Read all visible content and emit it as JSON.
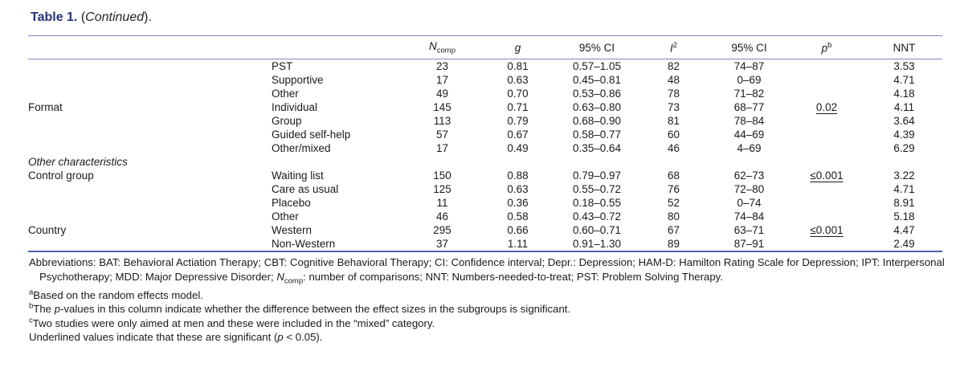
{
  "colors": {
    "rule": "#7e88c0",
    "rule-bottom": "#4f5fac",
    "title": "#24357c",
    "text": "#1a1a1a",
    "bg": "#ffffff"
  },
  "title": {
    "bold": "Table 1.",
    "paren_open": " (",
    "word": "Continued",
    "paren_close": ")."
  },
  "table": {
    "header": {
      "ncomp_main": "N",
      "ncomp_sub": "comp",
      "g": "g",
      "ci1": "95% CI",
      "i2_main": "I",
      "i2_sup": "2",
      "ci2": "95% CI",
      "p_main": "p",
      "p_sup": "b",
      "nnt": "NNT"
    },
    "rows": [
      {
        "category": "",
        "subgroup": "PST",
        "ncomp": "23",
        "g": "0.81",
        "ci1": "0.57–1.05",
        "i2": "82",
        "ci2": "74–87",
        "p": "",
        "nnt": "3.53"
      },
      {
        "category": "",
        "subgroup": "Supportive",
        "ncomp": "17",
        "g": "0.63",
        "ci1": "0.45–0.81",
        "i2": "48",
        "ci2": "0–69",
        "p": "",
        "nnt": "4.71"
      },
      {
        "category": "",
        "subgroup": "Other",
        "ncomp": "49",
        "g": "0.70",
        "ci1": "0.53–0.86",
        "i2": "78",
        "ci2": "71–82",
        "p": "",
        "nnt": "4.18"
      },
      {
        "category": "Format",
        "subgroup": "Individual",
        "ncomp": "145",
        "g": "0.71",
        "ci1": "0.63–0.80",
        "i2": "73",
        "ci2": "68–77",
        "p": "0.02",
        "p_underline": true,
        "nnt": "4.11"
      },
      {
        "category": "",
        "subgroup": "Group",
        "ncomp": "113",
        "g": "0.79",
        "ci1": "0.68–0.90",
        "i2": "81",
        "ci2": "78–84",
        "p": "",
        "nnt": "3.64"
      },
      {
        "category": "",
        "subgroup": "Guided self-help",
        "ncomp": "57",
        "g": "0.67",
        "ci1": "0.58–0.77",
        "i2": "60",
        "ci2": "44–69",
        "p": "",
        "nnt": "4.39"
      },
      {
        "category": "",
        "subgroup": "Other/mixed",
        "ncomp": "17",
        "g": "0.49",
        "ci1": "0.35–0.64",
        "i2": "46",
        "ci2": "4–69",
        "p": "",
        "nnt": "6.29"
      },
      {
        "section": true,
        "category": "Other characteristics"
      },
      {
        "category": "Control group",
        "subgroup": "Waiting list",
        "ncomp": "150",
        "g": "0.88",
        "ci1": "0.79–0.97",
        "i2": "68",
        "ci2": "62–73",
        "p": "≤0.001",
        "p_underline": true,
        "nnt": "3.22"
      },
      {
        "category": "",
        "subgroup": "Care as usual",
        "ncomp": "125",
        "g": "0.63",
        "ci1": "0.55–0.72",
        "i2": "76",
        "ci2": "72–80",
        "p": "",
        "nnt": "4.71"
      },
      {
        "category": "",
        "subgroup": "Placebo",
        "ncomp": "11",
        "g": "0.36",
        "ci1": "0.18–0.55",
        "i2": "52",
        "ci2": "0–74",
        "p": "",
        "nnt": "8.91"
      },
      {
        "category": "",
        "subgroup": "Other",
        "ncomp": "46",
        "g": "0.58",
        "ci1": "0.43–0.72",
        "i2": "80",
        "ci2": "74–84",
        "p": "",
        "nnt": "5.18"
      },
      {
        "category": "Country",
        "subgroup": "Western",
        "ncomp": "295",
        "g": "0.66",
        "ci1": "0.60–0.71",
        "i2": "67",
        "ci2": "63–71",
        "p": "≤0.001",
        "p_underline": true,
        "nnt": "4.47"
      },
      {
        "category": "",
        "subgroup": "Non-Western",
        "ncomp": "37",
        "g": "1.11",
        "ci1": "0.91–1.30",
        "i2": "89",
        "ci2": "87–91",
        "p": "",
        "nnt": "2.49"
      }
    ]
  },
  "footnotes": {
    "abbrev": {
      "pre": "Abbreviations: BAT: Behavioral Actiation Therapy; CBT: Cognitive Behavioral Therapy; CI: Confidence interval; Depr.: Depression; HAM-D: Hamilton Rating Scale for Depression; IPT: Interpersonal Psychotherapy; MDD: Major Depressive Disorder; ",
      "nvar": "N",
      "nsub": "comp",
      "post": ": number of comparisons; NNT: Numbers-needed-to-treat; PST: Problem Solving Therapy."
    },
    "a": {
      "sup": "a",
      "text": "Based on the random effects model."
    },
    "b": {
      "sup": "b",
      "pre": "The ",
      "it": "p",
      "post": "-values in this column indicate whether the difference between the effect sizes in the subgroups is significant."
    },
    "c": {
      "sup": "c",
      "text": "Two studies were only aimed at men and these were included in the “mixed” category."
    },
    "underline_note": {
      "pre": "Underlined values indicate that these are significant (",
      "it": "p",
      "post": " < 0.05)."
    }
  }
}
